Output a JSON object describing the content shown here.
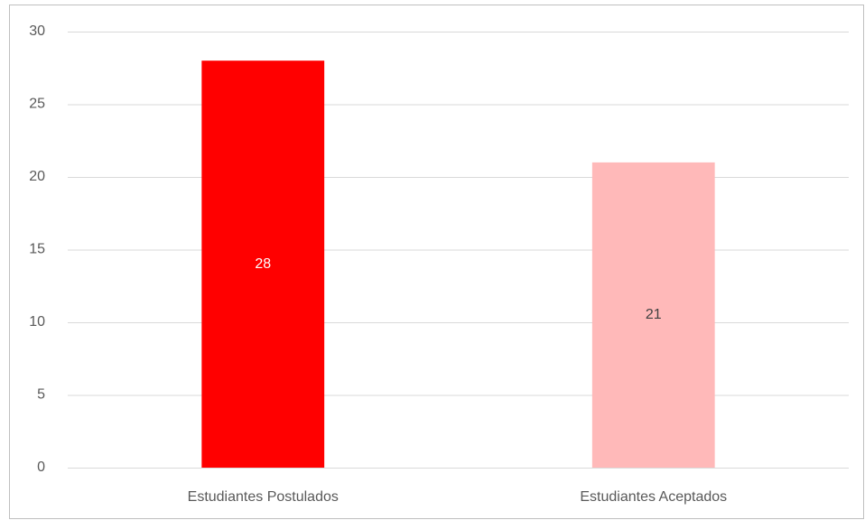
{
  "chart_data": {
    "type": "bar",
    "categories": [
      "Estudiantes Postulados",
      "Estudiantes Aceptados"
    ],
    "values": [
      28,
      21
    ],
    "colors": [
      "#ff0000",
      "#ffb9b9"
    ],
    "label_colors": [
      "#ffffff",
      "#404040"
    ],
    "ylim": [
      0,
      30
    ],
    "yticks": [
      0,
      5,
      10,
      15,
      20,
      25,
      30
    ],
    "grid": true
  }
}
